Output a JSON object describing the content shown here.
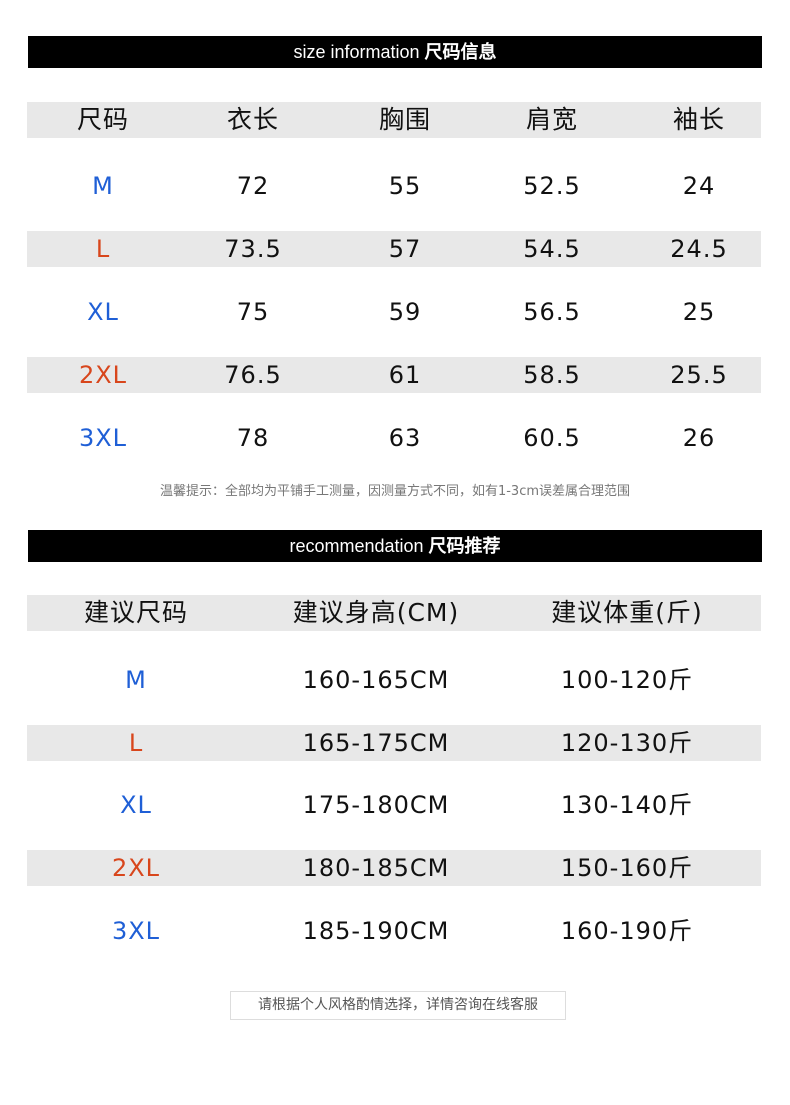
{
  "size_info": {
    "title_en": "size information",
    "title_cn": "尺码信息",
    "headers": [
      "尺码",
      "衣长",
      "胸围",
      "肩宽",
      "袖长"
    ],
    "rows": [
      [
        "M",
        "72",
        "55",
        "52.5",
        "24"
      ],
      [
        "L",
        "73.5",
        "57",
        "54.5",
        "24.5"
      ],
      [
        "XL",
        "75",
        "59",
        "56.5",
        "25"
      ],
      [
        "2XL",
        "76.5",
        "61",
        "58.5",
        "25.5"
      ],
      [
        "3XL",
        "78",
        "63",
        "60.5",
        "26"
      ]
    ],
    "note": "温馨提示：全部均为平铺手工测量，因测量方式不同，如有1-3cm误差属合理范围"
  },
  "recommendation": {
    "title_en": "recommendation",
    "title_cn": "尺码推荐",
    "headers": [
      "建议尺码",
      "建议身高(CM)",
      "建议体重(斤)"
    ],
    "rows": [
      [
        "M",
        "160-165CM",
        "100-120斤"
      ],
      [
        "L",
        "165-175CM",
        "120-130斤"
      ],
      [
        "XL",
        "175-180CM",
        "130-140斤"
      ],
      [
        "2XL",
        "180-185CM",
        "150-160斤"
      ],
      [
        "3XL",
        "185-190CM",
        "160-190斤"
      ]
    ],
    "footer": "请根据个人风格酌情选择，详情咨询在线客服"
  },
  "colors": {
    "size_blue": "#1f5fd6",
    "size_red": "#d8461c",
    "row_gray": "#e8e8e8",
    "header_bar": "#000000"
  }
}
